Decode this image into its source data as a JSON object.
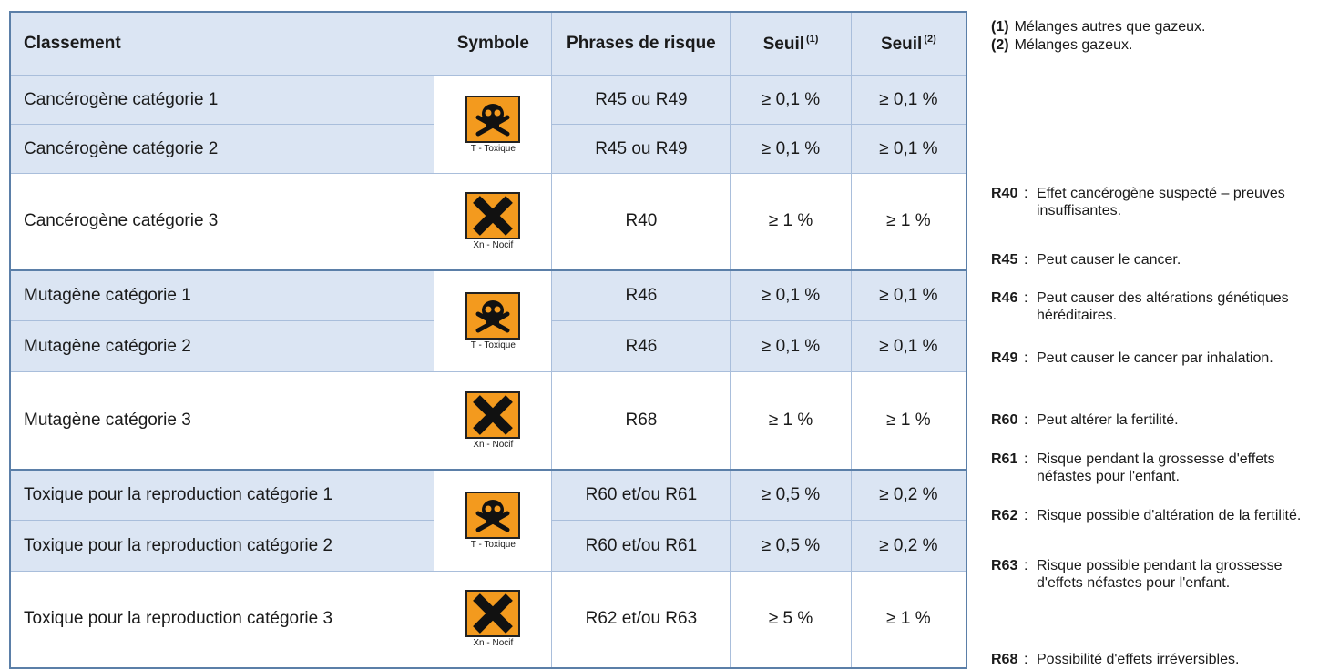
{
  "table": {
    "header": [
      {
        "text": "Classement"
      },
      {
        "text": "Symbole"
      },
      {
        "text": "Phrases de risque"
      },
      {
        "text": "Seuil",
        "sup": "(1)"
      },
      {
        "text": "Seuil",
        "sup": "(2)"
      }
    ],
    "groups": [
      {
        "symbols": [
          "T - Toxique",
          "Xn - Nocif"
        ],
        "rows": [
          {
            "classement": "Cancérogène catégorie 1",
            "phrases": "R45 ou R49",
            "seuil1": "≥ 0,1 %",
            "seuil2": "≥ 0,1 %"
          },
          {
            "classement": "Cancérogène catégorie 2",
            "phrases": "R45 ou R49",
            "seuil1": "≥ 0,1 %",
            "seuil2": "≥ 0,1 %"
          },
          {
            "classement": "Cancérogène catégorie 3",
            "phrases": "R40",
            "seuil1": "≥ 1 %",
            "seuil2": "≥ 1 %"
          }
        ]
      },
      {
        "symbols": [
          "T - Toxique",
          "Xn - Nocif"
        ],
        "rows": [
          {
            "classement": "Mutagène catégorie 1",
            "phrases": "R46",
            "seuil1": "≥ 0,1 %",
            "seuil2": "≥ 0,1 %"
          },
          {
            "classement": "Mutagène catégorie 2",
            "phrases": "R46",
            "seuil1": "≥ 0,1 %",
            "seuil2": "≥ 0,1 %"
          },
          {
            "classement": "Mutagène catégorie 3",
            "phrases": "R68",
            "seuil1": "≥ 1 %",
            "seuil2": "≥ 1 %"
          }
        ]
      },
      {
        "symbols": [
          "T - Toxique",
          "Xn - Nocif"
        ],
        "rows": [
          {
            "classement": "Toxique pour la reproduction catégorie 1",
            "phrases": "R60 et/ou R61",
            "seuil1": "≥ 0,5 %",
            "seuil2": "≥ 0,2 %"
          },
          {
            "classement": "Toxique pour la reproduction catégorie 2",
            "phrases": "R60 et/ou R61",
            "seuil1": "≥ 0,5 %",
            "seuil2": "≥ 0,2 %"
          },
          {
            "classement": "Toxique pour la reproduction catégorie 3",
            "phrases": "R62 et/ou R63",
            "seuil1": "≥ 5 %",
            "seuil2": "≥ 1 %"
          }
        ]
      }
    ]
  },
  "notes": [
    {
      "mark": "(1)",
      "text": "Mélanges autres que gazeux."
    },
    {
      "mark": "(2)",
      "text": "Mélanges gazeux."
    }
  ],
  "legend_separator": ":",
  "legend": [
    {
      "code": "R40",
      "text": "Effet cancérogène suspecté – preuves insuffisantes."
    },
    {
      "code": "R45",
      "text": "Peut causer le cancer."
    },
    {
      "code": "R46",
      "text": "Peut causer des altérations génétiques héréditaires."
    },
    {
      "code": "R49",
      "text": "Peut causer le cancer par inhalation."
    },
    {
      "code": "R60",
      "text": "Peut altérer la fertilité."
    },
    {
      "code": "R61",
      "text": "Risque pendant la grossesse d'effets néfastes pour l'enfant."
    },
    {
      "code": "R62",
      "text": "Risque possible d'altération de la fertilité."
    },
    {
      "code": "R63",
      "text": "Risque possible pendant la grossesse d'effets néfastes pour l'enfant."
    },
    {
      "code": "R68",
      "text": "Possibilité d'effets irréversibles."
    }
  ]
}
